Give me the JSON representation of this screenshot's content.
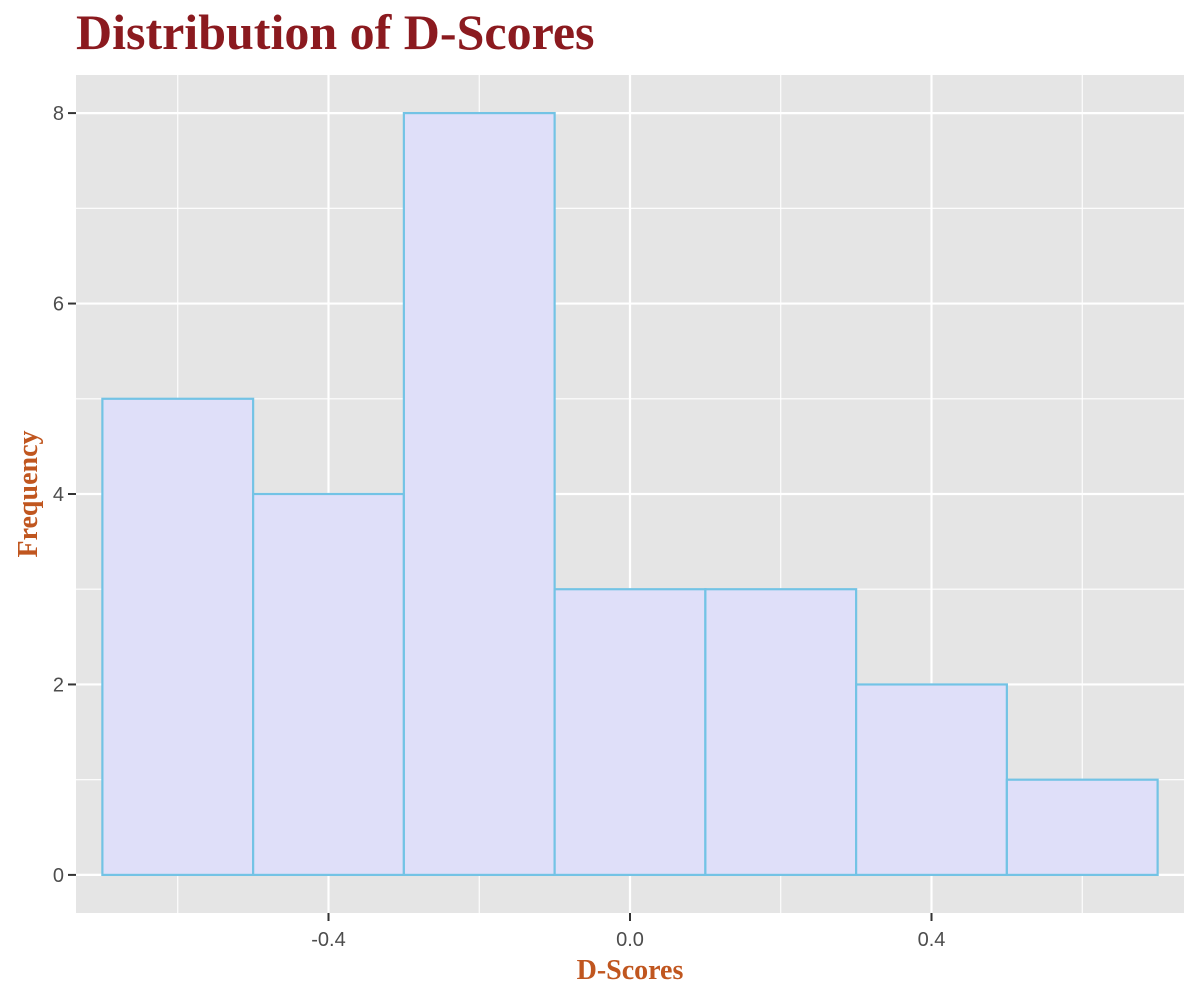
{
  "chart_data": {
    "type": "bar",
    "title": "Distribution of D-Scores",
    "xlabel": "D-Scores",
    "ylabel": "Frequency",
    "bins": [
      {
        "start": -0.7,
        "end": -0.5,
        "count": 5
      },
      {
        "start": -0.5,
        "end": -0.3,
        "count": 4
      },
      {
        "start": -0.3,
        "end": -0.1,
        "count": 8
      },
      {
        "start": -0.1,
        "end": 0.1,
        "count": 3
      },
      {
        "start": 0.1,
        "end": 0.3,
        "count": 3
      },
      {
        "start": 0.3,
        "end": 0.5,
        "count": 2
      },
      {
        "start": 0.5,
        "end": 0.7,
        "count": 1
      }
    ],
    "xlim": [
      -0.735,
      0.735
    ],
    "ylim": [
      -0.4,
      8.4
    ],
    "x_ticks": [
      {
        "value": -0.4,
        "label": "-0.4"
      },
      {
        "value": 0.0,
        "label": "0.0"
      },
      {
        "value": 0.4,
        "label": "0.4"
      }
    ],
    "x_minor_ticks": [
      -0.6,
      -0.2,
      0.2,
      0.6
    ],
    "y_ticks": [
      {
        "value": 0,
        "label": "0"
      },
      {
        "value": 2,
        "label": "2"
      },
      {
        "value": 4,
        "label": "4"
      },
      {
        "value": 6,
        "label": "6"
      },
      {
        "value": 8,
        "label": "8"
      }
    ],
    "y_minor_ticks": [
      1,
      3,
      5,
      7
    ],
    "grid": true,
    "legend": "none",
    "colors": {
      "bar_fill": "#dfdff9",
      "bar_stroke": "#73c3e5",
      "panel_background": "#e5e5e5",
      "grid": "#ffffff",
      "title": "#8b1a1f",
      "axis_title": "#c0561f",
      "tick_label": "#4d4d4d",
      "tick_mark": "#333333"
    }
  }
}
